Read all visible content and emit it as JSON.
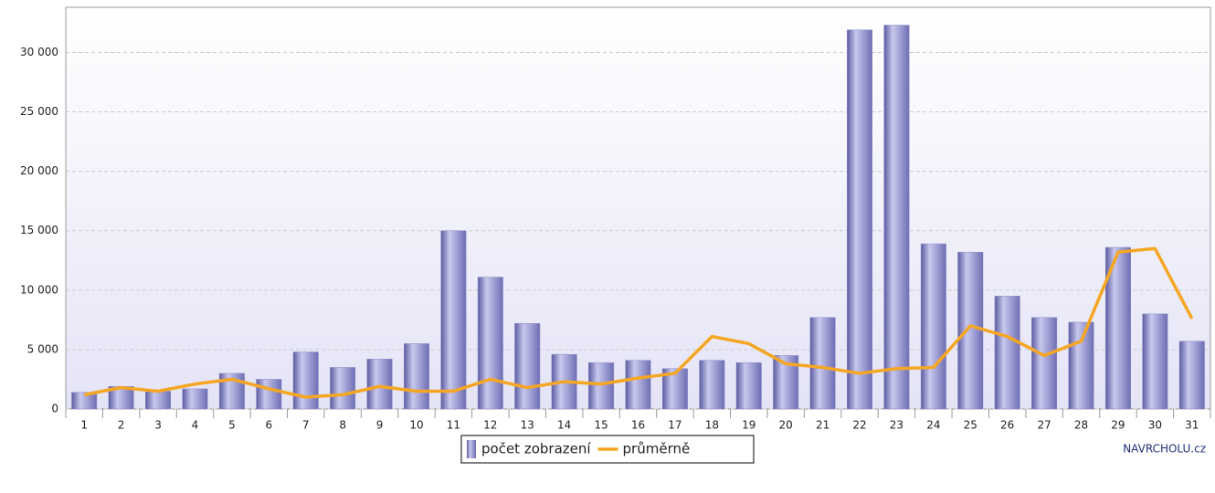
{
  "chart_data": {
    "type": "bar",
    "categories": [
      "1",
      "2",
      "3",
      "4",
      "5",
      "6",
      "7",
      "8",
      "9",
      "10",
      "11",
      "12",
      "13",
      "14",
      "15",
      "16",
      "17",
      "18",
      "19",
      "20",
      "21",
      "22",
      "23",
      "24",
      "25",
      "26",
      "27",
      "28",
      "29",
      "30",
      "31"
    ],
    "series": [
      {
        "name": "počet zobrazení",
        "type": "bar",
        "color": "#8c8cc8",
        "values": [
          1400,
          1900,
          1500,
          1700,
          3000,
          2500,
          4800,
          3500,
          4200,
          5500,
          15000,
          11100,
          7200,
          4600,
          3900,
          4100,
          3400,
          4100,
          3900,
          4500,
          7700,
          31900,
          32300,
          13900,
          13200,
          9500,
          7700,
          7300,
          13600,
          8000,
          5700
        ]
      },
      {
        "name": "průměrně",
        "type": "line",
        "color": "#f5a623",
        "values": [
          1200,
          1800,
          1500,
          2100,
          2500,
          1700,
          1000,
          1200,
          1900,
          1500,
          1500,
          2500,
          1800,
          2300,
          2100,
          2600,
          3000,
          6100,
          5500,
          3800,
          3500,
          3000,
          3400,
          3500,
          7000,
          6100,
          4500,
          5700,
          13200,
          13500,
          7600
        ]
      }
    ],
    "ylim": [
      0,
      33800
    ],
    "yticks": [
      0,
      {
        "value": 5000,
        "label": "5 000"
      },
      {
        "value": 10000,
        "label": "10 000"
      },
      {
        "value": 15000,
        "label": "15 000"
      },
      {
        "value": 20000,
        "label": "20 000"
      },
      {
        "value": 25000,
        "label": "25 000"
      },
      {
        "value": 30000,
        "label": "30 000"
      }
    ],
    "grid": true,
    "legend": "bottom",
    "watermark": "NAVRCHOLU.cz"
  }
}
